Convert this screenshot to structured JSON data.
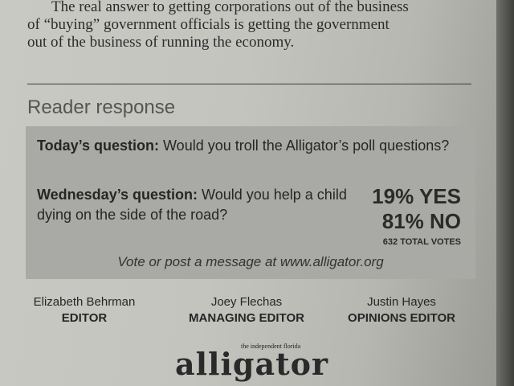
{
  "article": {
    "lines": [
      "The real answer to getting corporations out of the business",
      "of “buying” government officials is getting the government",
      "out of the business of running the economy."
    ]
  },
  "reader_response": {
    "title": "Reader response",
    "today_label": "Today’s question:",
    "today_text": " Would you troll the Alligator’s poll questions?",
    "wednesday_label": "Wednesday’s question:",
    "wednesday_text": " Would you help a child dying on the side of the road?",
    "yes_result": "19% YES",
    "no_result": "81% NO",
    "total_votes": "632 TOTAL VOTES",
    "vote_prompt": "Vote or post a message at www.alligator.org"
  },
  "staff": [
    {
      "name": "Elizabeth Behrman",
      "role": "EDITOR"
    },
    {
      "name": "Joey Flechas",
      "role": "MANAGING EDITOR"
    },
    {
      "name": "Justin Hayes",
      "role": "OPINIONS EDITOR"
    }
  ],
  "masthead": {
    "tagline": "the independent florida",
    "logo": "alligator"
  }
}
